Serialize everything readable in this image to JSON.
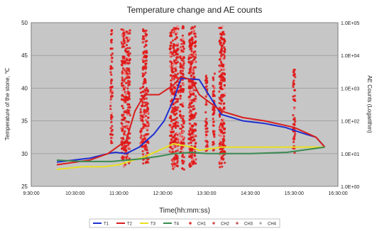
{
  "chart_data": {
    "type": "line",
    "title": "Temperature change and AE counts",
    "xlabel": "Time(hh:mm:ss)",
    "ylabel": "Temperature of the stone, ℃",
    "y2label": "AE Counts (Logarithm)",
    "xticks": [
      "9:30:00",
      "10:30:00",
      "11:30:00",
      "12:30:00",
      "13:30:00",
      "14:30:00",
      "15:30:00",
      "16:30:00"
    ],
    "xlim_minutes": [
      570,
      990
    ],
    "yticks": [
      "25",
      "30",
      "35",
      "40",
      "45",
      "50"
    ],
    "ylim": [
      25,
      50
    ],
    "y2ticks": [
      "1.0E+00",
      "1.0E+01",
      "1.0E+02",
      "1.0E+03",
      "1.0E+04",
      "1.0E+05"
    ],
    "y2lim_log10": [
      0,
      5
    ],
    "grid": true,
    "legend_position": "bottom",
    "series": [
      {
        "name": "T1",
        "color": "#1f2fd0",
        "axis": "left",
        "x_minutes": [
          605,
          650,
          675,
          685,
          700,
          718,
          738,
          752,
          760,
          765,
          775,
          800,
          830,
          860,
          890,
          918,
          945,
          960,
          972
        ],
        "values": [
          28.7,
          29.3,
          30.0,
          30.2,
          30.0,
          31.0,
          33.0,
          35.0,
          37.0,
          38.2,
          41.5,
          41.3,
          36.0,
          35.0,
          34.6,
          34.0,
          33.0,
          32.5,
          31.0
        ]
      },
      {
        "name": "T2",
        "color": "#d81e1e",
        "axis": "left",
        "x_minutes": [
          605,
          650,
          675,
          685,
          700,
          712,
          725,
          745,
          765,
          775,
          790,
          800,
          830,
          860,
          890,
          930,
          960,
          972
        ],
        "values": [
          28.3,
          29.0,
          30.0,
          30.8,
          32.0,
          36.5,
          39.0,
          39.0,
          40.5,
          41.8,
          41.2,
          39.0,
          36.5,
          35.5,
          35.0,
          34.0,
          32.5,
          31.0
        ]
      },
      {
        "name": "T3",
        "color": "#e8e020",
        "axis": "left",
        "x_minutes": [
          605,
          640,
          670,
          690,
          710,
          725,
          745,
          765,
          790,
          800,
          830,
          870,
          920,
          972
        ],
        "values": [
          27.6,
          28.0,
          28.0,
          28.3,
          29.0,
          29.5,
          30.5,
          31.5,
          31.0,
          30.5,
          31.0,
          31.0,
          31.0,
          31.0
        ]
      },
      {
        "name": "T4",
        "color": "#3a8a50",
        "axis": "left",
        "x_minutes": [
          605,
          640,
          680,
          700,
          720,
          745,
          765,
          790,
          810,
          830,
          870,
          920,
          972
        ],
        "values": [
          29.0,
          28.8,
          28.8,
          29.0,
          29.2,
          29.6,
          30.0,
          30.2,
          30.0,
          30.0,
          30.0,
          30.2,
          31.0
        ]
      },
      {
        "name": "CH1",
        "color": "#e03030",
        "axis": "right",
        "type": "scatter"
      },
      {
        "name": "CH2",
        "color": "#d05050",
        "axis": "right",
        "type": "scatter"
      },
      {
        "name": "CH3",
        "color": "#c06060",
        "axis": "right",
        "type": "scatter"
      },
      {
        "name": "CH4",
        "color": "#b0b0b0",
        "axis": "right",
        "type": "scatter"
      }
    ],
    "ae_columns": [
      {
        "x_minutes": 680,
        "log10_min": 1.3,
        "log10_max": 4.8
      },
      {
        "x_minutes": 695,
        "log10_min": 0.8,
        "log10_max": 4.8
      },
      {
        "x_minutes": 698,
        "log10_min": 0.6,
        "log10_max": 4.8
      },
      {
        "x_minutes": 701,
        "log10_min": 0.8,
        "log10_max": 4.8
      },
      {
        "x_minutes": 704,
        "log10_min": 0.7,
        "log10_max": 4.8
      },
      {
        "x_minutes": 721,
        "log10_min": 1.2,
        "log10_max": 3.0
      },
      {
        "x_minutes": 724,
        "log10_min": 0.7,
        "log10_max": 4.8
      },
      {
        "x_minutes": 727,
        "log10_min": 0.7,
        "log10_max": 4.8
      },
      {
        "x_minutes": 729,
        "log10_min": 0.7,
        "log10_max": 3.0
      },
      {
        "x_minutes": 761,
        "log10_min": 1.0,
        "log10_max": 4.8
      },
      {
        "x_minutes": 764,
        "log10_min": 0.5,
        "log10_max": 4.9
      },
      {
        "x_minutes": 767,
        "log10_min": 0.5,
        "log10_max": 4.9
      },
      {
        "x_minutes": 770,
        "log10_min": 0.5,
        "log10_max": 4.9
      },
      {
        "x_minutes": 775,
        "log10_min": 1.0,
        "log10_max": 4.5
      },
      {
        "x_minutes": 778,
        "log10_min": 0.5,
        "log10_max": 4.9
      },
      {
        "x_minutes": 787,
        "log10_min": 0.6,
        "log10_max": 4.9
      },
      {
        "x_minutes": 789,
        "log10_min": 0.6,
        "log10_max": 4.9
      },
      {
        "x_minutes": 791,
        "log10_min": 0.6,
        "log10_max": 4.9
      },
      {
        "x_minutes": 794,
        "log10_min": 0.6,
        "log10_max": 4.9
      },
      {
        "x_minutes": 810,
        "log10_min": 1.0,
        "log10_max": 3.5
      },
      {
        "x_minutes": 820,
        "log10_min": 1.0,
        "log10_max": 3.5
      },
      {
        "x_minutes": 829,
        "log10_min": 0.5,
        "log10_max": 4.9
      },
      {
        "x_minutes": 831,
        "log10_min": 0.6,
        "log10_max": 4.9
      },
      {
        "x_minutes": 834,
        "log10_min": 0.7,
        "log10_max": 4.8
      },
      {
        "x_minutes": 930,
        "log10_min": 1.0,
        "log10_max": 3.6
      }
    ]
  }
}
